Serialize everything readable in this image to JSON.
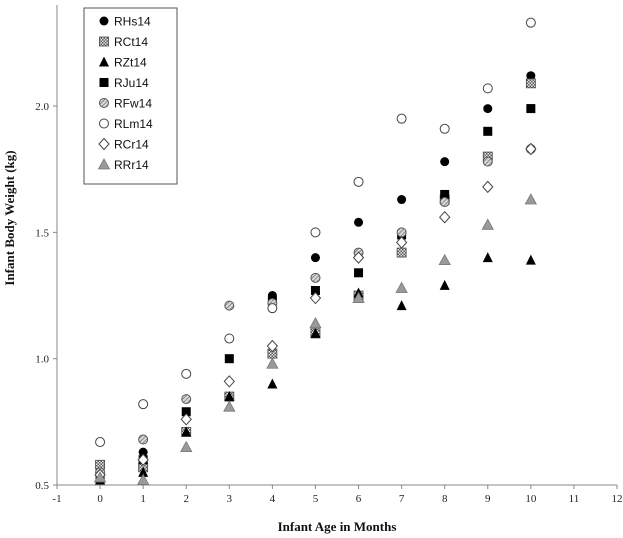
{
  "chart_data": {
    "type": "scatter",
    "title": "",
    "xlabel": "Infant Age in Months",
    "ylabel": "Infant Body Weight (kg)",
    "xlim": [
      -1,
      12
    ],
    "ylim": [
      0.5,
      2.4
    ],
    "xticks": [
      -1,
      0,
      1,
      2,
      3,
      4,
      5,
      6,
      7,
      8,
      9,
      10,
      11,
      12
    ],
    "yticks": [
      0.5,
      1.0,
      1.5,
      2.0
    ],
    "grid": false,
    "legend_position": "top-left",
    "x": [
      0,
      1,
      2,
      3,
      4,
      5,
      6,
      7,
      8,
      9,
      10
    ],
    "series": [
      {
        "name": "RHs14",
        "marker": "circle-filled",
        "values": [
          0.55,
          0.63,
          0.84,
          1.21,
          1.25,
          1.4,
          1.54,
          1.63,
          1.78,
          1.99,
          2.12
        ]
      },
      {
        "name": "RCt14",
        "marker": "square-checker",
        "values": [
          0.58,
          0.57,
          0.71,
          0.85,
          1.02,
          1.1,
          1.25,
          1.42,
          1.63,
          1.8,
          2.09
        ]
      },
      {
        "name": "RZt14",
        "marker": "triangle-filled",
        "values": [
          0.52,
          0.55,
          0.71,
          0.85,
          0.9,
          1.1,
          1.26,
          1.21,
          1.29,
          1.4,
          1.39
        ]
      },
      {
        "name": "RJu14",
        "marker": "square-filled",
        "values": [
          0.52,
          0.6,
          0.79,
          1.0,
          1.23,
          1.27,
          1.34,
          1.49,
          1.65,
          1.9,
          1.99
        ]
      },
      {
        "name": "RFw14",
        "marker": "circle-hatched",
        "values": [
          0.55,
          0.68,
          0.84,
          1.21,
          1.22,
          1.32,
          1.42,
          1.5,
          1.62,
          1.78,
          1.83
        ]
      },
      {
        "name": "RLm14",
        "marker": "circle-open",
        "values": [
          0.67,
          0.82,
          0.94,
          1.08,
          1.2,
          1.5,
          1.7,
          1.95,
          1.91,
          2.07,
          2.33
        ]
      },
      {
        "name": "RCr14",
        "marker": "diamond-open",
        "values": [
          0.54,
          0.6,
          0.76,
          0.91,
          1.05,
          1.24,
          1.4,
          1.46,
          1.56,
          1.68,
          1.83
        ]
      },
      {
        "name": "RRr14",
        "marker": "triangle-gray",
        "values": [
          0.53,
          0.52,
          0.65,
          0.81,
          0.98,
          1.14,
          1.24,
          1.28,
          1.39,
          1.53,
          1.63
        ]
      }
    ]
  }
}
